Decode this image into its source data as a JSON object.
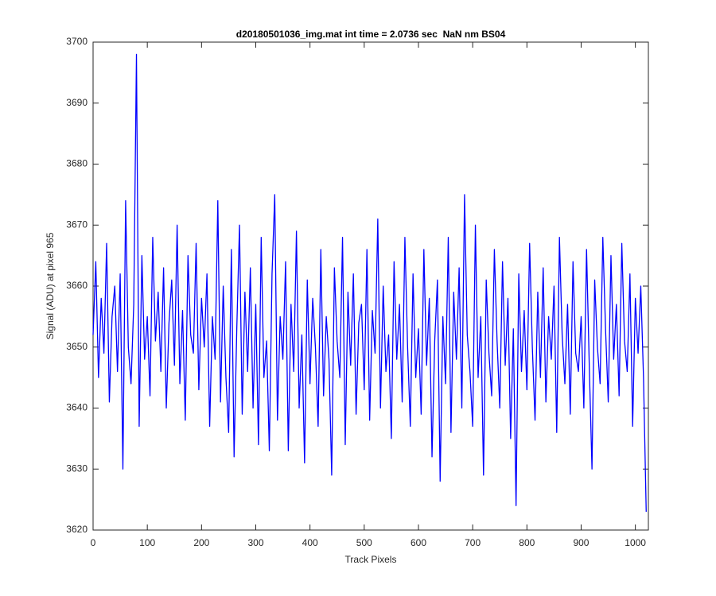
{
  "chart_data": {
    "type": "line",
    "title": "d20180501036_img.mat int time = 2.0736 sec  NaN nm BS04",
    "xlabel": "Track Pixels",
    "ylabel": "Signal (ADU) at pixel 965",
    "xlim": [
      0,
      1024
    ],
    "ylim": [
      3620,
      3700
    ],
    "xticks": [
      0,
      100,
      200,
      300,
      400,
      500,
      600,
      700,
      800,
      900,
      1000
    ],
    "yticks": [
      3620,
      3630,
      3640,
      3650,
      3660,
      3670,
      3680,
      3690,
      3700
    ],
    "grid": false,
    "series": [
      {
        "color": "#0000ff",
        "x": [
          0,
          5,
          10,
          15,
          20,
          25,
          30,
          35,
          40,
          45,
          50,
          55,
          60,
          65,
          70,
          75,
          80,
          85,
          90,
          95,
          100,
          105,
          110,
          115,
          120,
          125,
          130,
          135,
          140,
          145,
          150,
          155,
          160,
          165,
          170,
          175,
          180,
          185,
          190,
          195,
          200,
          205,
          210,
          215,
          220,
          225,
          230,
          235,
          240,
          245,
          250,
          255,
          260,
          265,
          270,
          275,
          280,
          285,
          290,
          295,
          300,
          305,
          310,
          315,
          320,
          325,
          330,
          335,
          340,
          345,
          350,
          355,
          360,
          365,
          370,
          375,
          380,
          385,
          390,
          395,
          400,
          405,
          410,
          415,
          420,
          425,
          430,
          435,
          440,
          445,
          450,
          455,
          460,
          465,
          470,
          475,
          480,
          485,
          490,
          495,
          500,
          505,
          510,
          515,
          520,
          525,
          530,
          535,
          540,
          545,
          550,
          555,
          560,
          565,
          570,
          575,
          580,
          585,
          590,
          595,
          600,
          605,
          610,
          615,
          620,
          625,
          630,
          635,
          640,
          645,
          650,
          655,
          660,
          665,
          670,
          675,
          680,
          685,
          690,
          695,
          700,
          705,
          710,
          715,
          720,
          725,
          730,
          735,
          740,
          745,
          750,
          755,
          760,
          765,
          770,
          775,
          780,
          785,
          790,
          795,
          800,
          805,
          810,
          815,
          820,
          825,
          830,
          835,
          840,
          845,
          850,
          855,
          860,
          865,
          870,
          875,
          880,
          885,
          890,
          895,
          900,
          905,
          910,
          915,
          920,
          925,
          930,
          935,
          940,
          945,
          950,
          955,
          960,
          965,
          970,
          975,
          980,
          985,
          990,
          995,
          1000,
          1005,
          1010,
          1015,
          1020
        ],
        "values": [
          3652,
          3664,
          3645,
          3658,
          3649,
          3667,
          3641,
          3655,
          3660,
          3646,
          3662,
          3630,
          3674,
          3650,
          3644,
          3657,
          3698,
          3637,
          3665,
          3648,
          3655,
          3642,
          3668,
          3651,
          3659,
          3646,
          3663,
          3640,
          3654,
          3661,
          3647,
          3670,
          3644,
          3656,
          3638,
          3665,
          3652,
          3649,
          3667,
          3643,
          3658,
          3650,
          3662,
          3637,
          3655,
          3648,
          3674,
          3641,
          3660,
          3645,
          3636,
          3666,
          3632,
          3653,
          3670,
          3639,
          3659,
          3646,
          3663,
          3640,
          3657,
          3634,
          3668,
          3645,
          3651,
          3633,
          3662,
          3675,
          3638,
          3655,
          3648,
          3664,
          3633,
          3657,
          3646,
          3669,
          3640,
          3652,
          3631,
          3661,
          3644,
          3658,
          3650,
          3637,
          3666,
          3642,
          3655,
          3648,
          3629,
          3663,
          3651,
          3645,
          3668,
          3634,
          3659,
          3647,
          3662,
          3639,
          3654,
          3657,
          3643,
          3666,
          3638,
          3656,
          3649,
          3671,
          3640,
          3660,
          3646,
          3652,
          3635,
          3664,
          3648,
          3657,
          3641,
          3668,
          3650,
          3637,
          3662,
          3645,
          3653,
          3639,
          3666,
          3647,
          3658,
          3632,
          3651,
          3661,
          3628,
          3655,
          3644,
          3668,
          3636,
          3659,
          3648,
          3663,
          3640,
          3675,
          3652,
          3646,
          3637,
          3670,
          3645,
          3655,
          3629,
          3661,
          3649,
          3642,
          3666,
          3651,
          3640,
          3664,
          3647,
          3658,
          3635,
          3653,
          3624,
          3662,
          3646,
          3656,
          3643,
          3667,
          3650,
          3638,
          3659,
          3645,
          3663,
          3641,
          3655,
          3648,
          3660,
          3636,
          3668,
          3652,
          3644,
          3657,
          3639,
          3664,
          3649,
          3646,
          3655,
          3640,
          3666,
          3647,
          3630,
          3661,
          3650,
          3644,
          3668,
          3653,
          3641,
          3665,
          3648,
          3657,
          3642,
          3667,
          3651,
          3646,
          3662,
          3637,
          3658,
          3649,
          3660,
          3645,
          3623
        ]
      }
    ]
  }
}
